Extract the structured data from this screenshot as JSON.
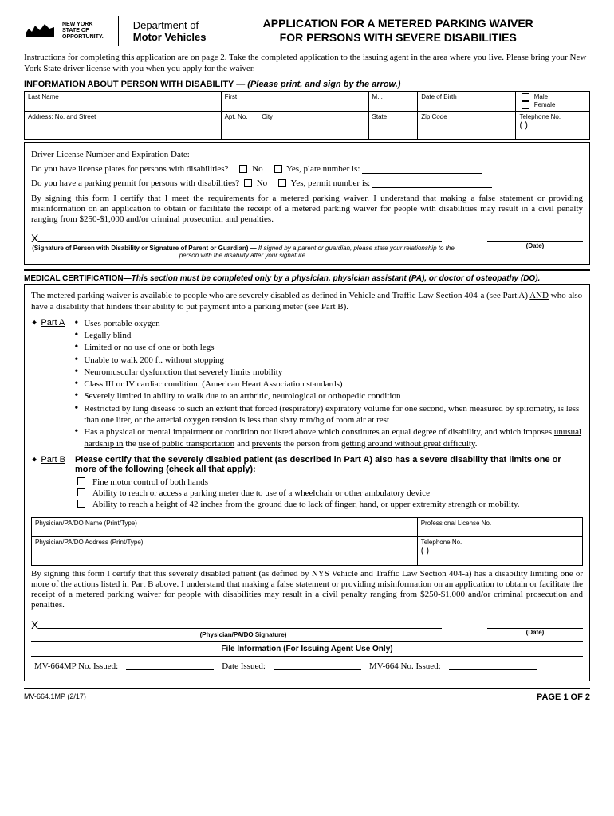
{
  "header": {
    "nys_line1": "NEW YORK",
    "nys_line2": "STATE OF",
    "nys_line3": "OPPORTUNITY.",
    "dept_line1": "Department of",
    "dept_line2": "Motor Vehicles",
    "title_line1": "APPLICATION FOR A METERED PARKING WAIVER",
    "title_line2": "FOR PERSONS WITH  SEVERE DISABILITIES"
  },
  "instructions": "Instructions for completing this application are on page 2. Take the completed application to the issuing agent in the area where you live. Please bring your New York State driver license with you when you apply for the waiver.",
  "section1": {
    "heading": "INFORMATION ABOUT PERSON WITH DISABILITY —",
    "heading_em": " (Please print, and sign by the arrow.)",
    "labels": {
      "last": "Last Name",
      "first": "First",
      "mi": "M.I.",
      "dob": "Date of Birth",
      "male": "Male",
      "female": "Female",
      "addr": "Address: No. and Street",
      "apt": "Apt. No.",
      "city": "City",
      "state": "State",
      "zip": "Zip Code",
      "tel": "Telephone No.",
      "paren": "(            )"
    },
    "q_dl": "Driver License Number and Expiration Date:",
    "q_plates": "Do you have license plates for persons with disabilities?",
    "q_plates_yes": "Yes,  plate number is:",
    "q_permit": "Do you have a parking permit for persons with disabilities?",
    "q_permit_yes": "Yes,  permit number is:",
    "no": "No",
    "cert": "By signing this form I certify that I meet the requirements for a metered parking waiver.  I understand that making a false statement or providing misinformation on an application to obtain or facilitate the receipt of a metered parking waiver for people with disabilities may result in a civil penalty ranging from $250-$1,000 and/or criminal prosecution and penalties.",
    "sig_label": "(Signature of Person with Disability or Signature of Parent or Guardian) —",
    "sig_em": " If signed by a parent or guardian, please state your relationship to the person with the disability after your signature.",
    "date": "(Date)"
  },
  "section2": {
    "heading": "MEDICAL CERTIFICATION—",
    "heading_em": "This section must be completed only by a physician, physician assistant (PA), or doctor of osteopathy (DO).",
    "intro_a": "The metered parking waiver is available to people who are severely disabled as defined in Vehicle and Traffic Law Section 404-a (see Part A) ",
    "intro_and": "AND",
    "intro_b": " who also have a disability that hinders their ability to put payment into a parking meter (see Part B).",
    "partA_label": "Part A",
    "partA_items": [
      "Uses portable oxygen",
      "Legally blind",
      "Limited or no use of one or both legs",
      "Unable to walk 200 ft. without stopping",
      "Neuromuscular dysfunction that severely limits mobility",
      "Class III or IV cardiac condition. (American Heart Association standards)",
      "Severely limited in ability to walk due to an arthritic, neurological or orthopedic condition",
      "Restricted by lung disease to such an extent that forced (respiratory) expiratory volume for one second, when measured by spirometry, is less than one liter, or the arterial oxygen tension is less than sixty mm/hg of room air at rest"
    ],
    "partA_last": "Has a physical or mental impairment or condition not listed above which constitutes an equal degree of disability, and which imposes ",
    "partA_u1": "unusual hardship in",
    "partA_mid": " the ",
    "partA_u2": "use of public transportation",
    "partA_mid2": " and ",
    "partA_u3": "prevents",
    "partA_mid3": " the person from ",
    "partA_u4": "getting around without great difficulty",
    "partA_end": ".",
    "partB_label": "Part B",
    "partB_intro": "Please certify that the severely disabled patient (as described in Part A) also has a severe disability that limits one or more of the following (check all that apply):",
    "partB_items": [
      "Fine motor control of both hands",
      "Ability to reach or access a parking meter due to use of a wheelchair or other ambulatory device",
      "Ability to reach a height of 42 inches from the ground due to lack of finger, hand, or upper extremity strength or mobility."
    ],
    "phys_name": "Physician/PA/DO Name (Print/Type)",
    "prof_lic": "Professional License No.",
    "phys_addr": "Physician/PA/DO Address (Print/Type)",
    "phys_tel": "Telephone No.",
    "paren": "(            )",
    "cert": "By signing this form I certify that this severely disabled patient (as defined by NYS Vehicle and Traffic Law Section 404-a) has a disability limiting one or more of the actions listed in Part B above.  I understand that making a false statement or providing misinformation on an application to obtain or facilitate the receipt of a metered parking waiver for people with disabilities may result in a civil penalty ranging from $250-$1,000 and/or criminal prosecution and penalties.",
    "sig_label": "(Physician/PA/DO Signature)",
    "date": "(Date)"
  },
  "file_info": {
    "heading": "File Information (For Issuing Agent Use Only)",
    "f1": "MV-664MP No. Issued:",
    "f2": "Date Issued:",
    "f3": "MV-664 No. Issued:"
  },
  "footer": {
    "form_no": "MV-664.1MP (2/17)",
    "page": "PAGE 1 OF 2"
  }
}
